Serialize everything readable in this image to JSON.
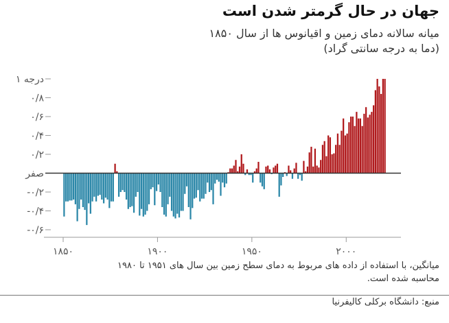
{
  "header": {
    "title": "جهان در حال گرمتر شدن است",
    "subtitle_line1": "میانه سالانه دمای زمین و اقیانوس ها از سال ۱۸۵۰",
    "subtitle_line2": "(دما به درجه سانتی گراد)"
  },
  "footer": {
    "note": "میانگین، با استفاده از داده های مربوط به دمای سطح زمین بین سال های ۱۹۵۱ تا ۱۹۸۰ محاسبه شده است.",
    "source": "منبع: دانشگاه برکلی کالیفرنیا"
  },
  "colors": {
    "positive": "#b0191c",
    "negative": "#2b87a8",
    "baseline": "#333333",
    "axis": "#9a9a9a"
  },
  "chart_data": {
    "type": "bar",
    "title": "جهان در حال گرمتر شدن است",
    "subtitle": "میانه سالانه دمای زمین و اقیانوس ها از سال ۱۸۵۰ (دما به درجه سانتی گراد)",
    "xlabel": "",
    "ylabel": "",
    "xlim": [
      1850,
      2021
    ],
    "ylim": [
      -0.6,
      1.0
    ],
    "grid": false,
    "x_ticks": [
      {
        "value": 1850,
        "label": "۱۸۵۰"
      },
      {
        "value": 1900,
        "label": "۱۹۰۰"
      },
      {
        "value": 1950,
        "label": "۱۹۵۰"
      },
      {
        "value": 2000,
        "label": "۲۰۰۰"
      }
    ],
    "y_ticks": [
      {
        "value": 1.0,
        "label": "۱ درجه"
      },
      {
        "value": 0.8,
        "label": "۰/۸"
      },
      {
        "value": 0.6,
        "label": "۰/۶"
      },
      {
        "value": 0.4,
        "label": "۰/۴"
      },
      {
        "value": 0.2,
        "label": "۰/۲"
      },
      {
        "value": 0,
        "label": "صفر"
      },
      {
        "value": -0.2,
        "label": "-۰/۲"
      },
      {
        "value": -0.4,
        "label": "-۰/۴"
      },
      {
        "value": -0.6,
        "label": "-۰/۶"
      }
    ],
    "years": [
      1850,
      1851,
      1852,
      1853,
      1854,
      1855,
      1856,
      1857,
      1858,
      1859,
      1860,
      1861,
      1862,
      1863,
      1864,
      1865,
      1866,
      1867,
      1868,
      1869,
      1870,
      1871,
      1872,
      1873,
      1874,
      1875,
      1876,
      1877,
      1878,
      1879,
      1880,
      1881,
      1882,
      1883,
      1884,
      1885,
      1886,
      1887,
      1888,
      1889,
      1890,
      1891,
      1892,
      1893,
      1894,
      1895,
      1896,
      1897,
      1898,
      1899,
      1900,
      1901,
      1902,
      1903,
      1904,
      1905,
      1906,
      1907,
      1908,
      1909,
      1910,
      1911,
      1912,
      1913,
      1914,
      1915,
      1916,
      1917,
      1918,
      1919,
      1920,
      1921,
      1922,
      1923,
      1924,
      1925,
      1926,
      1927,
      1928,
      1929,
      1930,
      1931,
      1932,
      1933,
      1934,
      1935,
      1936,
      1937,
      1938,
      1939,
      1940,
      1941,
      1942,
      1943,
      1944,
      1945,
      1946,
      1947,
      1948,
      1949,
      1950,
      1951,
      1952,
      1953,
      1954,
      1955,
      1956,
      1957,
      1958,
      1959,
      1960,
      1961,
      1962,
      1963,
      1964,
      1965,
      1966,
      1967,
      1968,
      1969,
      1970,
      1971,
      1972,
      1973,
      1974,
      1975,
      1976,
      1977,
      1978,
      1979,
      1980,
      1981,
      1982,
      1983,
      1984,
      1985,
      1986,
      1987,
      1988,
      1989,
      1990,
      1991,
      1992,
      1993,
      1994,
      1995,
      1996,
      1997,
      1998,
      1999,
      2000,
      2001,
      2002,
      2003,
      2004,
      2005,
      2006,
      2007,
      2008,
      2009,
      2010,
      2011,
      2012,
      2013,
      2014,
      2015,
      2016,
      2017,
      2018,
      2019,
      2020
    ],
    "values": [
      -0.46,
      -0.3,
      -0.3,
      -0.29,
      -0.29,
      -0.28,
      -0.33,
      -0.51,
      -0.38,
      -0.28,
      -0.36,
      -0.39,
      -0.55,
      -0.32,
      -0.43,
      -0.3,
      -0.25,
      -0.3,
      -0.24,
      -0.23,
      -0.28,
      -0.32,
      -0.26,
      -0.28,
      -0.37,
      -0.3,
      -0.3,
      0.1,
      0.02,
      -0.25,
      -0.2,
      -0.18,
      -0.2,
      -0.28,
      -0.38,
      -0.36,
      -0.35,
      -0.42,
      -0.25,
      -0.2,
      -0.45,
      -0.38,
      -0.46,
      -0.44,
      -0.4,
      -0.33,
      -0.17,
      -0.15,
      -0.34,
      -0.19,
      -0.12,
      -0.2,
      -0.36,
      -0.44,
      -0.46,
      -0.33,
      -0.25,
      -0.4,
      -0.46,
      -0.48,
      -0.43,
      -0.47,
      -0.4,
      -0.4,
      -0.22,
      -0.14,
      -0.36,
      -0.49,
      -0.37,
      -0.27,
      -0.26,
      -0.18,
      -0.3,
      -0.27,
      -0.27,
      -0.22,
      -0.1,
      -0.2,
      -0.18,
      -0.33,
      -0.11,
      -0.07,
      -0.09,
      -0.24,
      -0.1,
      -0.15,
      -0.11,
      0.01,
      0.05,
      0.05,
      0.08,
      0.14,
      0.02,
      0.07,
      0.2,
      0.1,
      -0.02,
      0.04,
      -0.02,
      -0.02,
      -0.1,
      0.02,
      0.05,
      0.12,
      -0.1,
      -0.14,
      -0.17,
      0.07,
      0.08,
      0.04,
      -0.01,
      0.06,
      0.08,
      0.1,
      -0.25,
      -0.13,
      -0.04,
      0.01,
      -0.03,
      0.08,
      0.03,
      -0.06,
      0.05,
      0.11,
      -0.06,
      -0.02,
      -0.08,
      0.13,
      0.02,
      0.07,
      0.22,
      0.28,
      0.07,
      0.26,
      0.08,
      0.06,
      0.14,
      0.3,
      0.34,
      0.18,
      0.4,
      0.38,
      0.2,
      0.21,
      0.3,
      0.42,
      0.3,
      0.45,
      0.58,
      0.4,
      0.42,
      0.54,
      0.6,
      0.6,
      0.5,
      0.65,
      0.58,
      0.58,
      0.5,
      0.63,
      0.7,
      0.59,
      0.62,
      0.65,
      0.72,
      0.88,
      1.0,
      0.92,
      0.84,
      1.0,
      1.0
    ]
  }
}
